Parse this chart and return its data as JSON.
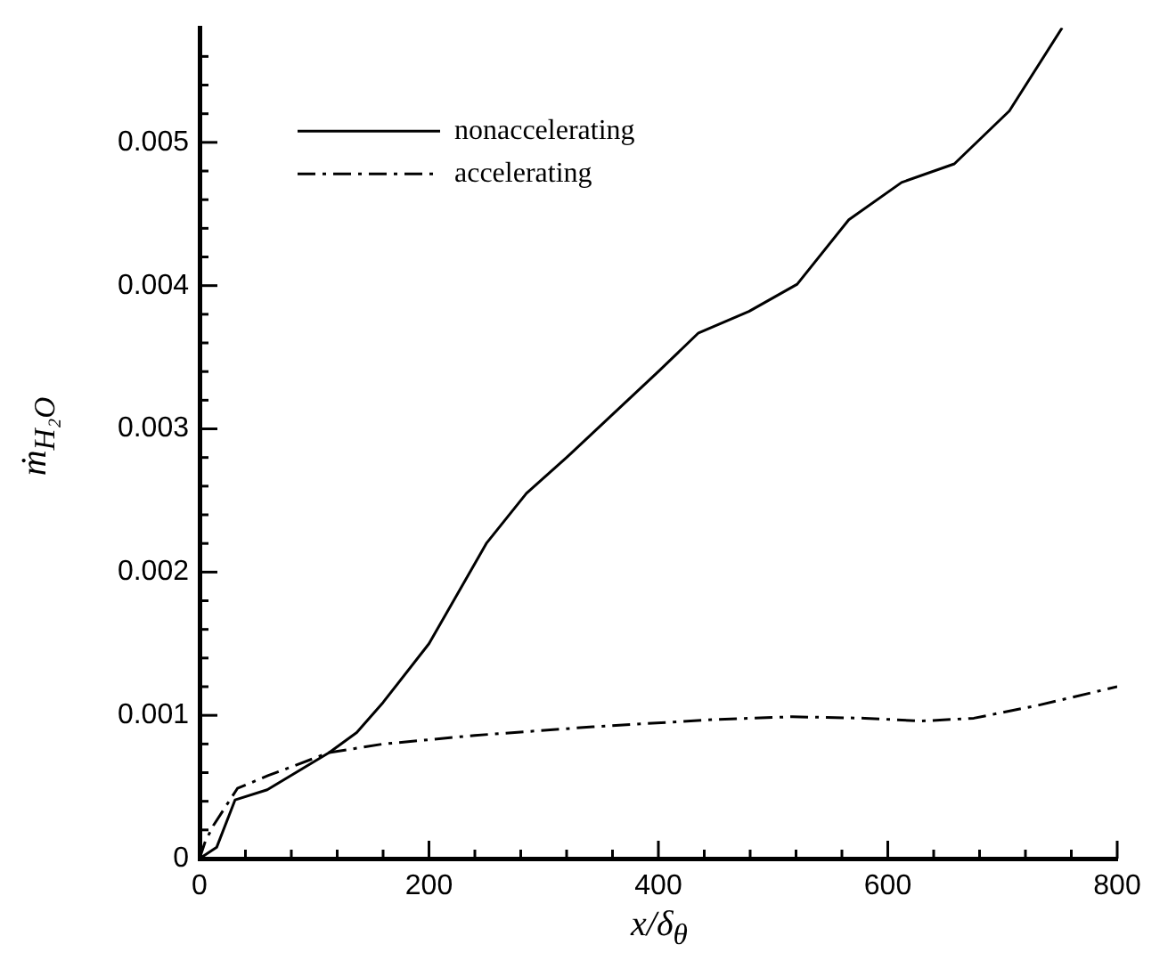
{
  "chart_data": {
    "type": "line",
    "xlabel": "x/δ$_{θ}$",
    "ylabel": "ṁ$_{H₂O}$",
    "xlim": [
      0,
      800
    ],
    "ylim": [
      0,
      0.0058
    ],
    "xticks": [
      0,
      {
        "value": 40,
        "label": null
      },
      {
        "value": 80,
        "label": null
      },
      {
        "value": 120,
        "label": null
      },
      {
        "value": 160,
        "label": null
      },
      200,
      {
        "value": 240,
        "label": null
      },
      {
        "value": 280,
        "label": null
      },
      {
        "value": 320,
        "label": null
      },
      {
        "value": 360,
        "label": null
      },
      400,
      {
        "value": 440,
        "label": null
      },
      {
        "value": 480,
        "label": null
      },
      {
        "value": 520,
        "label": null
      },
      {
        "value": 560,
        "label": null
      },
      600,
      {
        "value": 640,
        "label": null
      },
      {
        "value": 680,
        "label": null
      },
      {
        "value": 720,
        "label": null
      },
      {
        "value": 760,
        "label": null
      },
      800
    ],
    "yticks": [
      0,
      {
        "value": 0.0002,
        "label": null
      },
      {
        "value": 0.0004,
        "label": null
      },
      {
        "value": 0.0006,
        "label": null
      },
      {
        "value": 0.0008,
        "label": null
      },
      0.001,
      {
        "value": 0.0012,
        "label": null
      },
      {
        "value": 0.0014,
        "label": null
      },
      {
        "value": 0.0016,
        "label": null
      },
      {
        "value": 0.0018,
        "label": null
      },
      0.002,
      {
        "value": 0.0022,
        "label": null
      },
      {
        "value": 0.0024,
        "label": null
      },
      {
        "value": 0.0026,
        "label": null
      },
      {
        "value": 0.0028,
        "label": null
      },
      0.003,
      {
        "value": 0.0032,
        "label": null
      },
      {
        "value": 0.0034,
        "label": null
      },
      {
        "value": 0.0036,
        "label": null
      },
      {
        "value": 0.0038,
        "label": null
      },
      0.004,
      {
        "value": 0.0042,
        "label": null
      },
      {
        "value": 0.0044,
        "label": null
      },
      {
        "value": 0.0046,
        "label": null
      },
      {
        "value": 0.0048,
        "label": null
      },
      0.005,
      {
        "value": 0.0052,
        "label": null
      },
      {
        "value": 0.0054,
        "label": null
      },
      {
        "value": 0.0056,
        "label": null
      }
    ],
    "grid": false,
    "legend": "top left",
    "marker": "none",
    "series": [
      {
        "name": "nonaccelerating",
        "color": "#000000",
        "line_style": "solid",
        "x": [
          0,
          15,
          31,
          59,
          113,
          137,
          160,
          200,
          250,
          285,
          320,
          360,
          400,
          435,
          479,
          521,
          566,
          612,
          658,
          706,
          752
        ],
        "values": [
          0,
          8e-05,
          0.00041,
          0.00048,
          0.00074,
          0.00088,
          0.00109,
          0.0015,
          0.0022,
          0.00255,
          0.0028,
          0.0031,
          0.0034,
          0.00367,
          0.00382,
          0.00401,
          0.00446,
          0.00472,
          0.00485,
          0.00522,
          0.0058
        ]
      },
      {
        "name": "accelerating",
        "color": "#000000",
        "line_style": "dashdot",
        "x": [
          0,
          5,
          12,
          33,
          60,
          113,
          160,
          240,
          343,
          447,
          517,
          580,
          629,
          675,
          731,
          800
        ],
        "values": [
          0,
          0.00012,
          0.00023,
          0.00049,
          0.00058,
          0.00074,
          0.0008,
          0.00086,
          0.00092,
          0.00097,
          0.00099,
          0.00098,
          0.00096,
          0.00098,
          0.00107,
          0.0012
        ]
      }
    ]
  }
}
